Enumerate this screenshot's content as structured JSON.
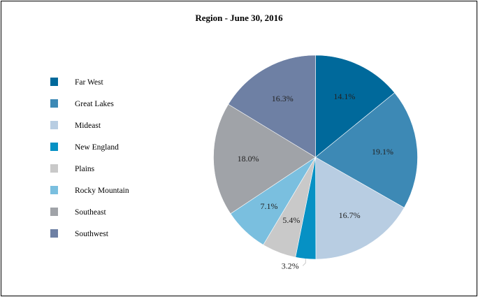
{
  "chart_data": {
    "type": "pie",
    "title": "Region - June 30, 2016",
    "legend_position": "left",
    "slices": [
      {
        "name": "Far West",
        "value": 14.1,
        "label": "14.1%",
        "color": "#00699b"
      },
      {
        "name": "Great Lakes",
        "value": 19.1,
        "label": "19.1%",
        "color": "#3d89b5"
      },
      {
        "name": "Mideast",
        "value": 16.7,
        "label": "16.7%",
        "color": "#b8cde2"
      },
      {
        "name": "New England",
        "value": 3.2,
        "label": "3.2%",
        "color": "#0691c4"
      },
      {
        "name": "Plains",
        "value": 5.4,
        "label": "5.4%",
        "color": "#c9c9c9"
      },
      {
        "name": "Rocky Mountain",
        "value": 7.1,
        "label": "7.1%",
        "color": "#7abfdf"
      },
      {
        "name": "Southeast",
        "value": 18.0,
        "label": "18.0%",
        "color": "#a0a3a8"
      },
      {
        "name": "Southwest",
        "value": 16.3,
        "label": "16.3%",
        "color": "#6e80a4"
      }
    ]
  }
}
